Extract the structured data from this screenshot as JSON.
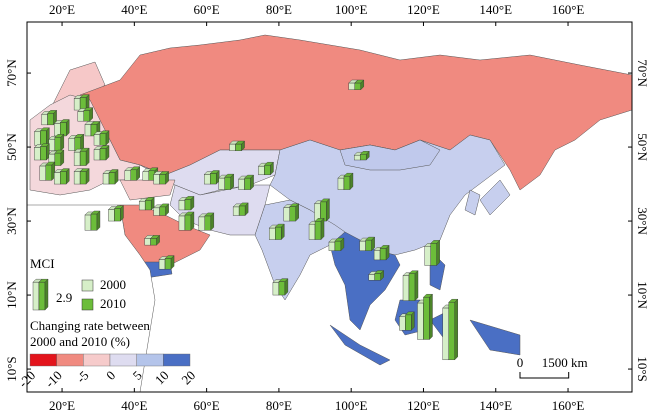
{
  "map": {
    "lon_range": [
      10.3,
      177.7
    ],
    "lat_range": [
      -16.2,
      83.8
    ],
    "lon_ticks": [
      {
        "value": 20,
        "label": "20°E"
      },
      {
        "value": 40,
        "label": "40°E"
      },
      {
        "value": 60,
        "label": "60°E"
      },
      {
        "value": 80,
        "label": "80°E"
      },
      {
        "value": 100,
        "label": "100°E"
      },
      {
        "value": 120,
        "label": "120°E"
      },
      {
        "value": 140,
        "label": "140°E"
      },
      {
        "value": 160,
        "label": "160°E"
      }
    ],
    "lat_ticks": [
      {
        "value": 70,
        "label": "70°N"
      },
      {
        "value": 50,
        "label": "50°N"
      },
      {
        "value": 30,
        "label": "30°N"
      },
      {
        "value": 10,
        "label": "10°N"
      },
      {
        "value": -10,
        "label": "10°S"
      }
    ],
    "sites": [
      {
        "lon": 25,
        "lat": 60,
        "mci_2000": 1.2,
        "mci_2010": 1.3
      },
      {
        "lon": 26,
        "lat": 57,
        "mci_2000": 1.0,
        "mci_2010": 1.1
      },
      {
        "lon": 16,
        "lat": 56,
        "mci_2000": 1.1,
        "mci_2010": 1.2
      },
      {
        "lon": 19.5,
        "lat": 53,
        "mci_2000": 1.3,
        "mci_2010": 1.4
      },
      {
        "lon": 28,
        "lat": 53,
        "mci_2000": 1.2,
        "mci_2010": 1.2
      },
      {
        "lon": 14,
        "lat": 50.5,
        "mci_2000": 1.4,
        "mci_2010": 1.5
      },
      {
        "lon": 18,
        "lat": 49,
        "mci_2000": 1.2,
        "mci_2010": 1.4
      },
      {
        "lon": 23.5,
        "lat": 49,
        "mci_2000": 1.3,
        "mci_2010": 1.4
      },
      {
        "lon": 30.5,
        "lat": 50.5,
        "mci_2000": 1.1,
        "mci_2010": 1.2
      },
      {
        "lon": 14,
        "lat": 46.5,
        "mci_2000": 1.3,
        "mci_2010": 1.4
      },
      {
        "lon": 18,
        "lat": 45,
        "mci_2000": 1.2,
        "mci_2010": 1.3
      },
      {
        "lon": 25,
        "lat": 45,
        "mci_2000": 1.4,
        "mci_2010": 1.5
      },
      {
        "lon": 30.5,
        "lat": 46.5,
        "mci_2000": 1.1,
        "mci_2010": 1.2
      },
      {
        "lon": 15.5,
        "lat": 41,
        "mci_2000": 1.5,
        "mci_2010": 1.6
      },
      {
        "lon": 19.5,
        "lat": 40,
        "mci_2000": 1.2,
        "mci_2010": 1.3
      },
      {
        "lon": 25,
        "lat": 40,
        "mci_2000": 1.3,
        "mci_2010": 1.3
      },
      {
        "lon": 33,
        "lat": 40,
        "mci_2000": 1.1,
        "mci_2010": 1.2
      },
      {
        "lon": 39,
        "lat": 41,
        "mci_2000": 1.0,
        "mci_2010": 1.1
      },
      {
        "lon": 44,
        "lat": 41,
        "mci_2000": 0.9,
        "mci_2010": 1.0
      },
      {
        "lon": 47,
        "lat": 40,
        "mci_2000": 1.0,
        "mci_2010": 1.0
      },
      {
        "lon": 28,
        "lat": 27.5,
        "mci_2000": 1.6,
        "mci_2010": 1.7
      },
      {
        "lon": 34.5,
        "lat": 30,
        "mci_2000": 1.2,
        "mci_2010": 1.3
      },
      {
        "lon": 43,
        "lat": 33,
        "mci_2000": 0.9,
        "mci_2010": 1.0
      },
      {
        "lon": 47,
        "lat": 31.5,
        "mci_2000": 0.8,
        "mci_2010": 0.9
      },
      {
        "lon": 44.5,
        "lat": 23.5,
        "mci_2000": 0.7,
        "mci_2010": 0.7
      },
      {
        "lon": 48.5,
        "lat": 17,
        "mci_2000": 1.0,
        "mci_2010": 1.1
      },
      {
        "lon": 54,
        "lat": 33,
        "mci_2000": 1.0,
        "mci_2010": 1.1
      },
      {
        "lon": 54,
        "lat": 27.5,
        "mci_2000": 1.5,
        "mci_2010": 1.6
      },
      {
        "lon": 59.5,
        "lat": 27.5,
        "mci_2000": 1.4,
        "mci_2010": 1.5
      },
      {
        "lon": 61,
        "lat": 40,
        "mci_2000": 1.0,
        "mci_2010": 1.1
      },
      {
        "lon": 65,
        "lat": 38.5,
        "mci_2000": 1.2,
        "mci_2010": 1.3
      },
      {
        "lon": 70.5,
        "lat": 38.5,
        "mci_2000": 1.1,
        "mci_2010": 1.2
      },
      {
        "lon": 69,
        "lat": 31.5,
        "mci_2000": 0.9,
        "mci_2010": 1.0
      },
      {
        "lon": 76,
        "lat": 42.5,
        "mci_2000": 0.9,
        "mci_2010": 1.0
      },
      {
        "lon": 68,
        "lat": 49,
        "mci_2000": 0.7,
        "mci_2010": 0.7
      },
      {
        "lon": 79,
        "lat": 25,
        "mci_2000": 1.2,
        "mci_2010": 1.3
      },
      {
        "lon": 83,
        "lat": 30,
        "mci_2000": 1.4,
        "mci_2010": 1.5
      },
      {
        "lon": 91.5,
        "lat": 30,
        "mci_2000": 1.8,
        "mci_2010": 2.0
      },
      {
        "lon": 90,
        "lat": 25,
        "mci_2000": 1.6,
        "mci_2010": 1.9
      },
      {
        "lon": 98,
        "lat": 38.5,
        "mci_2000": 1.2,
        "mci_2010": 1.4
      },
      {
        "lon": 102.5,
        "lat": 46.5,
        "mci_2000": 0.5,
        "mci_2010": 0.6
      },
      {
        "lon": 101,
        "lat": 65.5,
        "mci_2000": 0.7,
        "mci_2010": 0.7
      },
      {
        "lon": 80,
        "lat": 10,
        "mci_2000": 1.3,
        "mci_2010": 1.4
      },
      {
        "lon": 95.5,
        "lat": 22,
        "mci_2000": 0.9,
        "mci_2010": 1.0
      },
      {
        "lon": 104,
        "lat": 22,
        "mci_2000": 1.0,
        "mci_2010": 1.1
      },
      {
        "lon": 108,
        "lat": 19.5,
        "mci_2000": 1.0,
        "mci_2010": 1.2
      },
      {
        "lon": 106.5,
        "lat": 14,
        "mci_2000": 0.6,
        "mci_2010": 0.7
      },
      {
        "lon": 116,
        "lat": 8.5,
        "mci_2000": 2.6,
        "mci_2010": 2.8
      },
      {
        "lon": 115,
        "lat": 0.5,
        "mci_2000": 1.4,
        "mci_2010": 1.6
      },
      {
        "lon": 120,
        "lat": -2,
        "mci_2000": 3.8,
        "mci_2010": 4.4
      },
      {
        "lon": 127,
        "lat": -7.5,
        "mci_2000": 5.4,
        "mci_2010": 6.0
      },
      {
        "lon": 122,
        "lat": 18,
        "mci_2000": 2.0,
        "mci_2010": 2.3
      }
    ],
    "colors": {
      "mci_2000": "#d6efc8",
      "mci_2010": "#6cbd3a"
    }
  },
  "legend": {
    "title": "MCI",
    "mci_reference": 2.9,
    "series_2000": "2000",
    "series_2010": "2010",
    "rate_title_line1": "Changing rate between",
    "rate_title_line2": "2000 and 2010 (%)",
    "breaks": [
      -20,
      -10,
      -5,
      0,
      5,
      10,
      20
    ],
    "colors": [
      "#e3141c",
      "#f08a80",
      "#f6cbcb",
      "#dedcf0",
      "#b4c4ea",
      "#4a6fc4"
    ]
  },
  "scale_bar": {
    "zero": 0,
    "km": 1500,
    "label": "1500 km"
  }
}
